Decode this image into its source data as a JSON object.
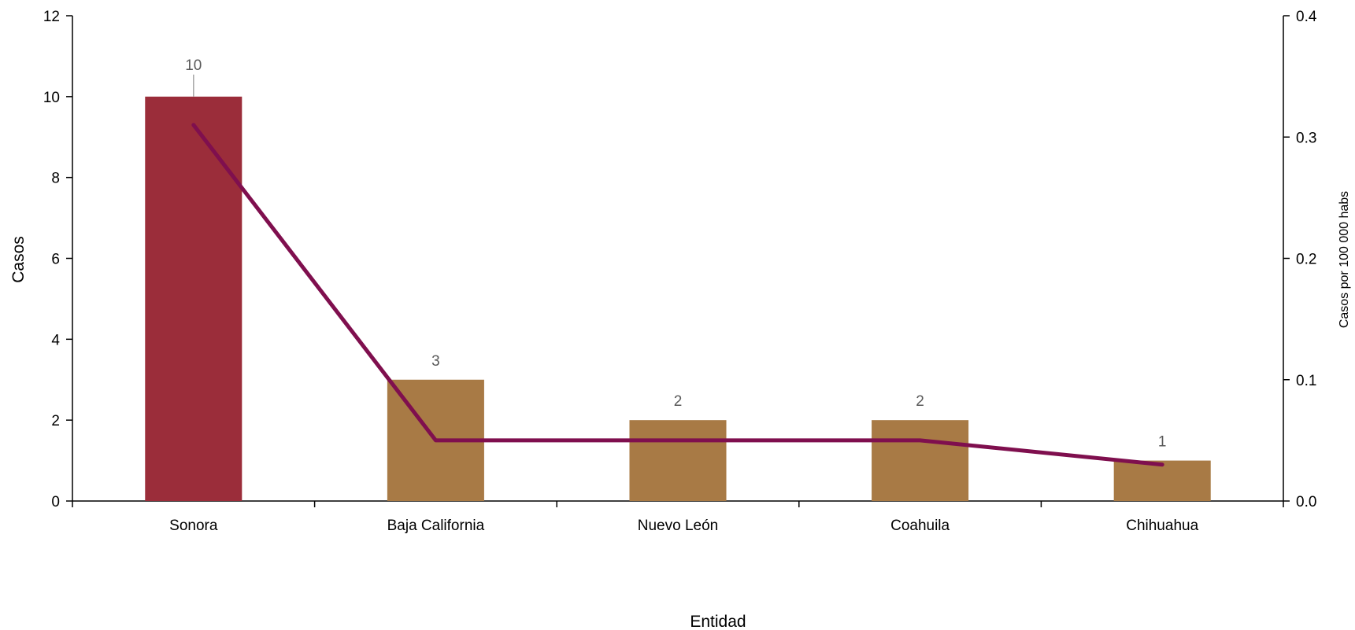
{
  "chart_data": {
    "type": "bar",
    "categories": [
      "Sonora",
      "Baja California",
      "Nuevo León",
      "Coahuila",
      "Chihuahua"
    ],
    "series": [
      {
        "type": "bar",
        "axis": "left",
        "values": [
          10,
          3,
          2,
          2,
          1
        ],
        "colors": [
          "#9B2D3A",
          "#A87A45",
          "#A87A45",
          "#A87A45",
          "#A87A45"
        ],
        "data_labels": [
          "10",
          "3",
          "2",
          "2",
          "1"
        ]
      },
      {
        "type": "line",
        "axis": "right",
        "values": [
          0.31,
          0.05,
          0.05,
          0.05,
          0.03
        ],
        "color": "#7F0F4E"
      }
    ],
    "title": "",
    "xlabel": "Entidad",
    "ylabel": "Casos",
    "y2label": "Casos por 100 000 habs",
    "ylim": [
      0,
      12
    ],
    "yticks": [
      "0",
      "2",
      "4",
      "6",
      "8",
      "10",
      "12"
    ],
    "y2lim": [
      0,
      0.4
    ],
    "y2ticks": [
      "0.0",
      "0.1",
      "0.2",
      "0.3",
      "0.4"
    ],
    "grid": false,
    "legend": "none"
  }
}
